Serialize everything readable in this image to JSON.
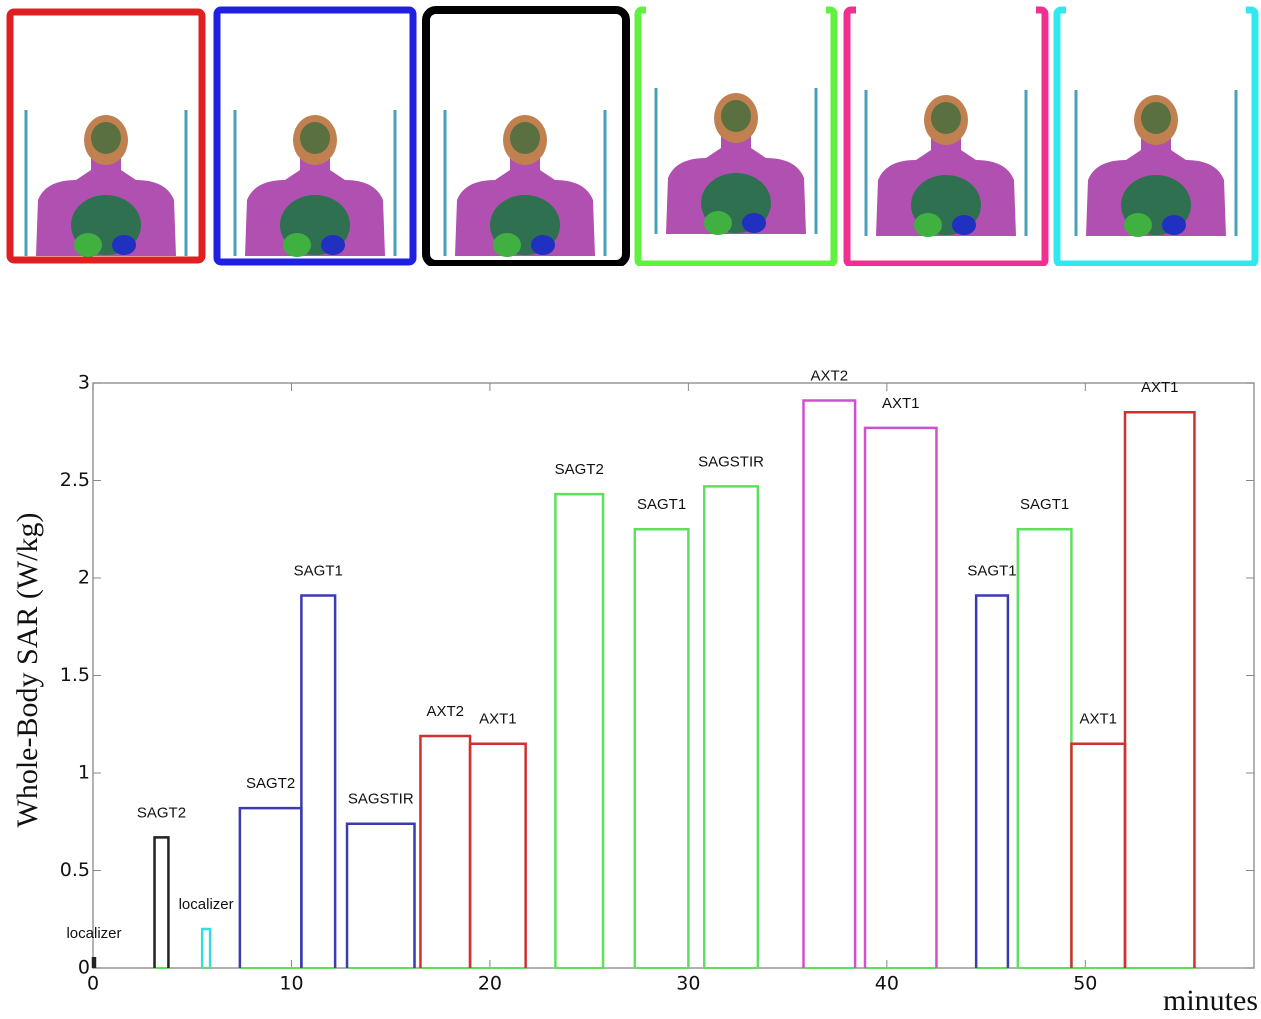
{
  "chart_data": {
    "type": "pulse",
    "x_label": "minutes",
    "y_label": "Whole-Body SAR (W/kg)",
    "xlim": [
      0,
      58.5
    ],
    "ylim": [
      0,
      3
    ],
    "xticks": [
      0,
      10,
      20,
      30,
      40,
      50
    ],
    "yticks": [
      0,
      0.5,
      1,
      1.5,
      2,
      2.5,
      3
    ],
    "pulses": [
      {
        "label": "localizer",
        "color": "#222222",
        "start": 0,
        "end": 0.1,
        "value": 0.05
      },
      {
        "label": "SAGT2",
        "color": "#222222",
        "start": 3.1,
        "end": 3.8,
        "value": 0.67
      },
      {
        "label": "localizer",
        "color": "#33dddd",
        "start": 5.5,
        "end": 5.9,
        "value": 0.2
      },
      {
        "label": "SAGT2",
        "color": "#3b3bb0",
        "start": 7.4,
        "end": 10.5,
        "value": 0.82
      },
      {
        "label": "SAGT1",
        "color": "#3b3bb0",
        "start": 10.5,
        "end": 12.2,
        "value": 1.91
      },
      {
        "label": "SAGSTIR",
        "color": "#3b3bb0",
        "start": 12.8,
        "end": 16.2,
        "value": 0.74
      },
      {
        "label": "AXT2",
        "color": "#d03030",
        "start": 16.5,
        "end": 19.0,
        "value": 1.19
      },
      {
        "label": "AXT1",
        "color": "#d03030",
        "start": 19.0,
        "end": 21.8,
        "value": 1.15
      },
      {
        "label": "SAGT2",
        "color": "#5ee05e",
        "start": 23.3,
        "end": 25.7,
        "value": 2.43
      },
      {
        "label": "SAGT1",
        "color": "#5ee05e",
        "start": 27.3,
        "end": 30.0,
        "value": 2.25
      },
      {
        "label": "SAGSTIR",
        "color": "#5ee05e",
        "start": 30.8,
        "end": 33.5,
        "value": 2.47
      },
      {
        "label": "AXT2",
        "color": "#d050d0",
        "start": 35.8,
        "end": 38.4,
        "value": 2.91
      },
      {
        "label": "AXT1",
        "color": "#d050d0",
        "start": 38.9,
        "end": 42.5,
        "value": 2.77
      },
      {
        "label": "SAGT1",
        "color": "#3b3bb0",
        "start": 44.5,
        "end": 46.1,
        "value": 1.91
      },
      {
        "label": "SAGT1",
        "color": "#5ee05e",
        "start": 46.6,
        "end": 49.3,
        "value": 2.25
      },
      {
        "label": "AXT1",
        "color": "#d03030",
        "start": 49.3,
        "end": 52.0,
        "value": 1.15
      },
      {
        "label": "AXT1",
        "color": "#d03030",
        "start": 52.0,
        "end": 55.5,
        "value": 2.85
      }
    ]
  }
}
